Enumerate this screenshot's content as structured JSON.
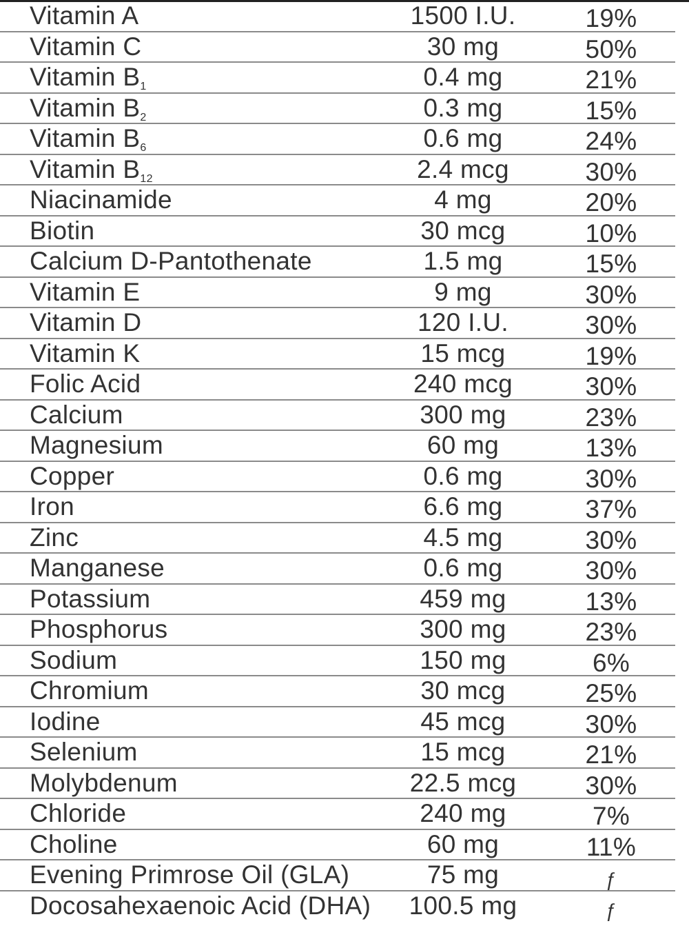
{
  "table": {
    "rows": [
      {
        "nutrient": "Vitamin A",
        "sub": "",
        "amount": "1500 I.U.",
        "dv": "19%"
      },
      {
        "nutrient": "Vitamin C",
        "sub": "",
        "amount": "30 mg",
        "dv": "50%"
      },
      {
        "nutrient": "Vitamin B",
        "sub": "1",
        "amount": "0.4 mg",
        "dv": "21%"
      },
      {
        "nutrient": "Vitamin B",
        "sub": "2",
        "amount": "0.3 mg",
        "dv": "15%"
      },
      {
        "nutrient": "Vitamin B",
        "sub": "6",
        "amount": "0.6 mg",
        "dv": "24%"
      },
      {
        "nutrient": "Vitamin B",
        "sub": "12",
        "amount": "2.4 mcg",
        "dv": "30%"
      },
      {
        "nutrient": "Niacinamide",
        "sub": "",
        "amount": "4 mg",
        "dv": "20%"
      },
      {
        "nutrient": "Biotin",
        "sub": "",
        "amount": "30 mcg",
        "dv": "10%"
      },
      {
        "nutrient": "Calcium D-Pantothenate",
        "sub": "",
        "amount": "1.5 mg",
        "dv": "15%"
      },
      {
        "nutrient": "Vitamin E",
        "sub": "",
        "amount": "9 mg",
        "dv": "30%"
      },
      {
        "nutrient": "Vitamin D",
        "sub": "",
        "amount": "120 I.U.",
        "dv": "30%"
      },
      {
        "nutrient": "Vitamin K",
        "sub": "",
        "amount": "15 mcg",
        "dv": "19%"
      },
      {
        "nutrient": "Folic Acid",
        "sub": "",
        "amount": "240 mcg",
        "dv": "30%"
      },
      {
        "nutrient": "Calcium",
        "sub": "",
        "amount": "300 mg",
        "dv": "23%"
      },
      {
        "nutrient": "Magnesium",
        "sub": "",
        "amount": "60 mg",
        "dv": "13%"
      },
      {
        "nutrient": "Copper",
        "sub": "",
        "amount": "0.6 mg",
        "dv": "30%"
      },
      {
        "nutrient": "Iron",
        "sub": "",
        "amount": "6.6 mg",
        "dv": "37%"
      },
      {
        "nutrient": "Zinc",
        "sub": "",
        "amount": "4.5 mg",
        "dv": "30%"
      },
      {
        "nutrient": "Manganese",
        "sub": "",
        "amount": "0.6 mg",
        "dv": "30%"
      },
      {
        "nutrient": "Potassium",
        "sub": "",
        "amount": "459 mg",
        "dv": "13%"
      },
      {
        "nutrient": "Phosphorus",
        "sub": "",
        "amount": "300 mg",
        "dv": "23%"
      },
      {
        "nutrient": "Sodium",
        "sub": "",
        "amount": "150 mg",
        "dv": "6%"
      },
      {
        "nutrient": "Chromium",
        "sub": "",
        "amount": "30 mcg",
        "dv": "25%"
      },
      {
        "nutrient": "Iodine",
        "sub": "",
        "amount": "45 mcg",
        "dv": "30%"
      },
      {
        "nutrient": "Selenium",
        "sub": "",
        "amount": "15 mcg",
        "dv": "21%"
      },
      {
        "nutrient": "Molybdenum",
        "sub": "",
        "amount": "22.5 mcg",
        "dv": "30%"
      },
      {
        "nutrient": "Chloride",
        "sub": "",
        "amount": "240 mg",
        "dv": "7%"
      },
      {
        "nutrient": "Choline",
        "sub": "",
        "amount": "60 mg",
        "dv": "11%"
      },
      {
        "nutrient": "Evening Primrose Oil (GLA)",
        "sub": "",
        "amount": "75 mg",
        "dv": "ƒ"
      },
      {
        "nutrient": "Docosahexaenoic Acid (DHA)",
        "sub": "",
        "amount": "100.5 mg",
        "dv": "ƒ"
      }
    ]
  }
}
